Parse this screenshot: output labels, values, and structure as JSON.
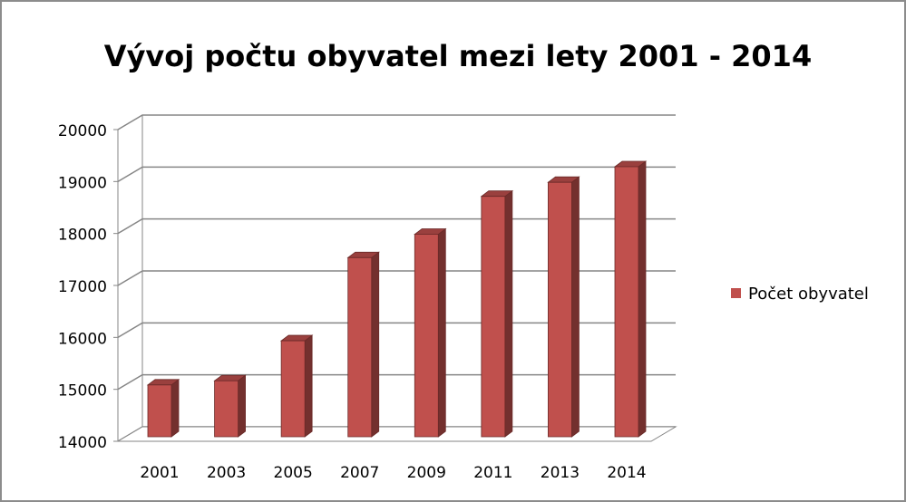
{
  "chart_data": {
    "type": "bar3d",
    "title": "Vývoj počtu obyvatel mezi lety 2001 - 2014",
    "categories": [
      "2001",
      "2003",
      "2005",
      "2007",
      "2009",
      "2011",
      "2013",
      "2014"
    ],
    "series": [
      {
        "name": "Počet obyvatel",
        "color": "#c0504d",
        "values": [
          15050,
          15130,
          15900,
          17500,
          17950,
          18680,
          18950,
          19250
        ]
      }
    ],
    "ylim": [
      14000,
      20000
    ],
    "yticks": [
      14000,
      15000,
      16000,
      17000,
      18000,
      19000,
      20000
    ],
    "grid": true,
    "legend": "right"
  }
}
